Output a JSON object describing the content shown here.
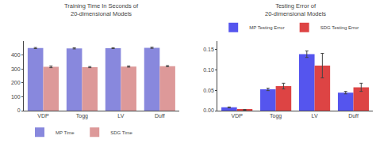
{
  "chart_data": [
    {
      "type": "bar",
      "title": "Training Time In Seconds of\n20-dimensional Models",
      "categories": [
        "VDP",
        "Togg",
        "LV",
        "Duff"
      ],
      "series": [
        {
          "name": "MP Time",
          "color": "#8888dd",
          "values": [
            450,
            448,
            449,
            452
          ],
          "errors": [
            4,
            4,
            3,
            4
          ]
        },
        {
          "name": "SDG Time",
          "color": "#dd9999",
          "values": [
            315,
            313,
            317,
            320
          ],
          "errors": [
            6,
            4,
            4,
            4
          ]
        }
      ],
      "ylim": [
        0,
        500
      ],
      "yticks": [
        0,
        100,
        200,
        300,
        400
      ],
      "grid": false,
      "legend": "lower left"
    },
    {
      "type": "bar",
      "title": "Testing Error of\n20-dimensional Models",
      "categories": [
        "VDP",
        "Togg",
        "LV",
        "Duff"
      ],
      "series": [
        {
          "name": "MP Testing Error",
          "color": "#5555ee",
          "values": [
            0.008,
            0.052,
            0.138,
            0.044
          ],
          "errors": [
            0.001,
            0.003,
            0.008,
            0.003
          ]
        },
        {
          "name": "SDG Testing Error",
          "color": "#dd4444",
          "values": [
            0.002,
            0.06,
            0.11,
            0.057
          ],
          "errors": [
            0.001,
            0.007,
            0.03,
            0.01
          ]
        }
      ],
      "ylim": [
        0,
        0.17
      ],
      "yticks": [
        {
          "value": 0,
          "label": "0.00"
        },
        0.05,
        {
          "value": 0.1,
          "label": "0.10"
        },
        0.15
      ],
      "grid": false,
      "legend": "upper left"
    }
  ]
}
